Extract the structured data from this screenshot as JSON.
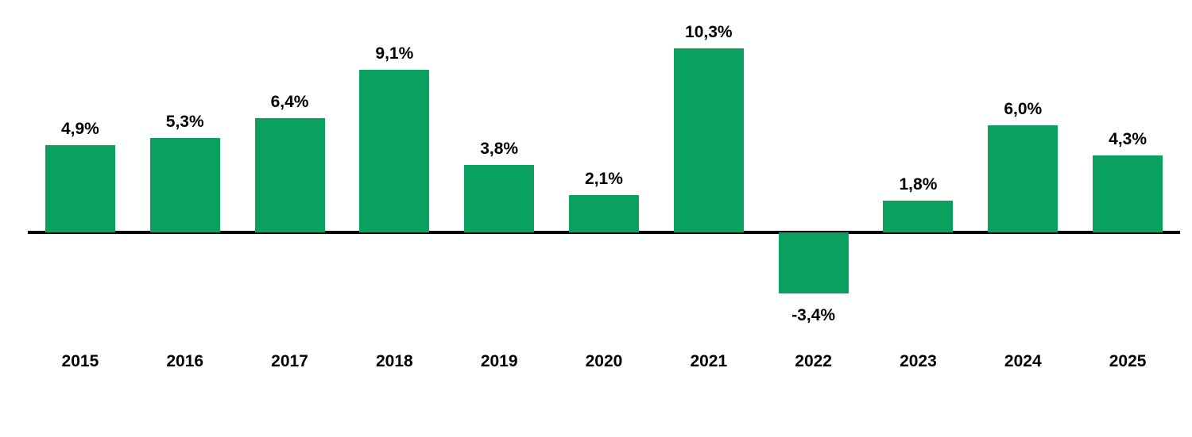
{
  "chart_data": {
    "type": "bar",
    "title": "",
    "xlabel": "",
    "ylabel": "",
    "categories": [
      "2015",
      "2016",
      "2017",
      "2018",
      "2019",
      "2020",
      "2021",
      "2022",
      "2023",
      "2024",
      "2025"
    ],
    "values": [
      4.9,
      5.3,
      6.4,
      9.1,
      3.8,
      2.1,
      10.3,
      -3.4,
      1.8,
      6.0,
      4.3
    ],
    "value_labels": [
      "4,9%",
      "5,3%",
      "6,4%",
      "9,1%",
      "3,8%",
      "2,1%",
      "10,3%",
      "-3,4%",
      "1,8%",
      "6,0%",
      "4,3%"
    ],
    "decimal_separator": ",",
    "unit": "%",
    "ylim": [
      -4,
      11
    ],
    "grid": false,
    "legend": false,
    "y_axis_visible": false,
    "x_axis_baseline_visible": true,
    "bar_color": "#0AA15E",
    "axis_color": "#000000",
    "label_color": "#000000"
  }
}
